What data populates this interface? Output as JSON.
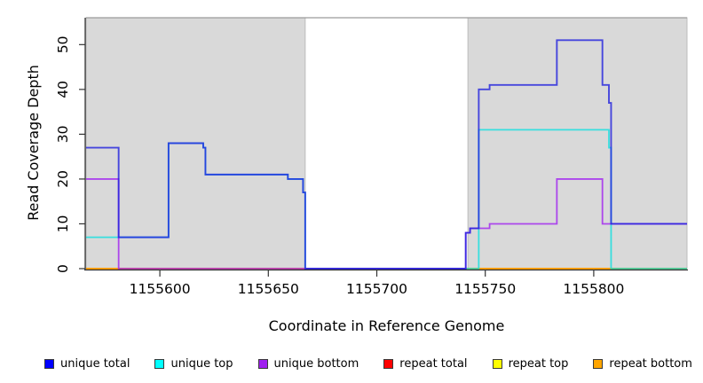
{
  "figure": {
    "xlabel": "Coordinate in Reference Genome",
    "ylabel": "Read Coverage Depth"
  },
  "legend": {
    "items": [
      {
        "label": "unique total",
        "color": "#0000ff"
      },
      {
        "label": "unique top",
        "color": "#00ffff"
      },
      {
        "label": "unique bottom",
        "color": "#a020f0"
      },
      {
        "label": "repeat total",
        "color": "#ff0000"
      },
      {
        "label": "repeat top",
        "color": "#ffff00"
      },
      {
        "label": "repeat bottom",
        "color": "#ffa500"
      }
    ]
  },
  "chart_data": {
    "type": "line",
    "title": "",
    "xlabel": "Coordinate in Reference Genome",
    "ylabel": "Read Coverage Depth",
    "xlim": [
      1155566,
      1155843
    ],
    "ylim": [
      0,
      56
    ],
    "x_ticks": [
      1155600,
      1155650,
      1155700,
      1155750,
      1155800
    ],
    "y_ticks": [
      0,
      10,
      20,
      30,
      40,
      50
    ],
    "grid": false,
    "legend_position": "bottom",
    "plot_bg": "#ffffff",
    "shaded_color": "#d9d9d9",
    "shaded_border": "#bdbdbd",
    "shaded_regions": [
      [
        1155566,
        1155667
      ],
      [
        1155742,
        1155843
      ]
    ],
    "gap_region": [
      1155667,
      1155742
    ],
    "axis_color": "#333333",
    "series": [
      {
        "name": "repeat total",
        "color": "#dd2222",
        "opacity": 1,
        "width": 1.6,
        "segments": [
          [
            1155566,
            1155843,
            0
          ]
        ]
      },
      {
        "name": "repeat top",
        "color": "#f0e020",
        "opacity": 1,
        "width": 1.6,
        "segments": [
          [
            1155566,
            1155843,
            0
          ]
        ]
      },
      {
        "name": "repeat bottom",
        "color": "#ff9d00",
        "opacity": 1,
        "width": 1.8,
        "segments": [
          [
            1155566,
            1155843,
            0
          ]
        ]
      },
      {
        "name": "unique top",
        "color": "#00e0e0",
        "opacity": 0.75,
        "width": 1.8,
        "segments": [
          [
            1155566,
            1155604,
            7
          ],
          [
            1155604,
            1155620,
            28
          ],
          [
            1155620,
            1155621,
            27
          ],
          [
            1155621,
            1155659,
            21
          ],
          [
            1155659,
            1155666,
            20
          ],
          [
            1155666,
            1155667,
            17
          ],
          [
            1155667,
            1155747,
            0
          ],
          [
            1155747,
            1155807,
            31
          ],
          [
            1155807,
            1155808,
            27
          ],
          [
            1155808,
            1155843,
            0
          ]
        ]
      },
      {
        "name": "unique bottom",
        "color": "#a020f0",
        "opacity": 0.8,
        "width": 1.8,
        "segments": [
          [
            1155566,
            1155581,
            20
          ],
          [
            1155581,
            1155741,
            0
          ],
          [
            1155741,
            1155743,
            8
          ],
          [
            1155743,
            1155752,
            9
          ],
          [
            1155752,
            1155783,
            10
          ],
          [
            1155783,
            1155804,
            20
          ],
          [
            1155804,
            1155843,
            10
          ]
        ]
      },
      {
        "name": "unique total",
        "color": "#2020dd",
        "opacity": 0.8,
        "width": 1.9,
        "segments": [
          [
            1155566,
            1155581,
            27
          ],
          [
            1155581,
            1155604,
            7
          ],
          [
            1155604,
            1155620,
            28
          ],
          [
            1155620,
            1155621,
            27
          ],
          [
            1155621,
            1155659,
            21
          ],
          [
            1155659,
            1155666,
            20
          ],
          [
            1155666,
            1155667,
            17
          ],
          [
            1155667,
            1155741,
            0
          ],
          [
            1155741,
            1155743,
            8
          ],
          [
            1155743,
            1155747,
            9
          ],
          [
            1155747,
            1155752,
            40
          ],
          [
            1155752,
            1155783,
            41
          ],
          [
            1155783,
            1155804,
            51
          ],
          [
            1155804,
            1155807,
            41
          ],
          [
            1155807,
            1155808,
            37
          ],
          [
            1155808,
            1155843,
            10
          ]
        ]
      }
    ]
  }
}
